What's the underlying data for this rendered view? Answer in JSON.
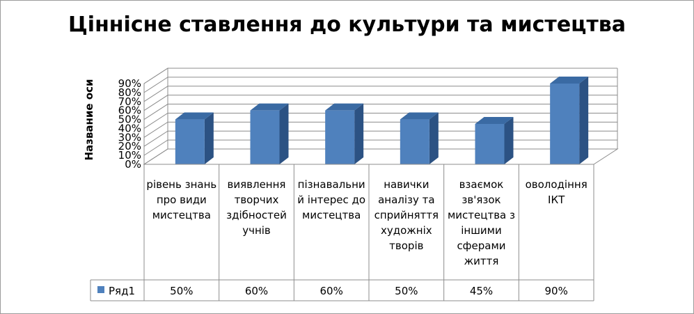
{
  "chart_data": {
    "type": "bar",
    "title": "Ціннісне ставлення до культури та мистецтва",
    "ylabel": "Название оси",
    "xlabel": "",
    "ylim": [
      0,
      90
    ],
    "y_ticks": [
      "0%",
      "10%",
      "20%",
      "30%",
      "40%",
      "50%",
      "60%",
      "70%",
      "80%",
      "90%"
    ],
    "categories": [
      "рівень знань про види мистецтва",
      "виявлення творчих здібностей учнів",
      "пізнавальний інтерес до мистецтва",
      "навички аналізу та сприйняття художніх творів",
      "взаємок зв'язок мистецтва з іншими сферами життя",
      "оволодіння ІКТ"
    ],
    "series": [
      {
        "name": "Ряд1",
        "values": [
          50,
          60,
          60,
          50,
          45,
          90
        ],
        "labels": [
          "50%",
          "60%",
          "60%",
          "50%",
          "45%",
          "90%"
        ],
        "color": "#4f81bd"
      }
    ],
    "grid": true,
    "legend": "data-table",
    "style": "3d-column-with-data-table"
  }
}
